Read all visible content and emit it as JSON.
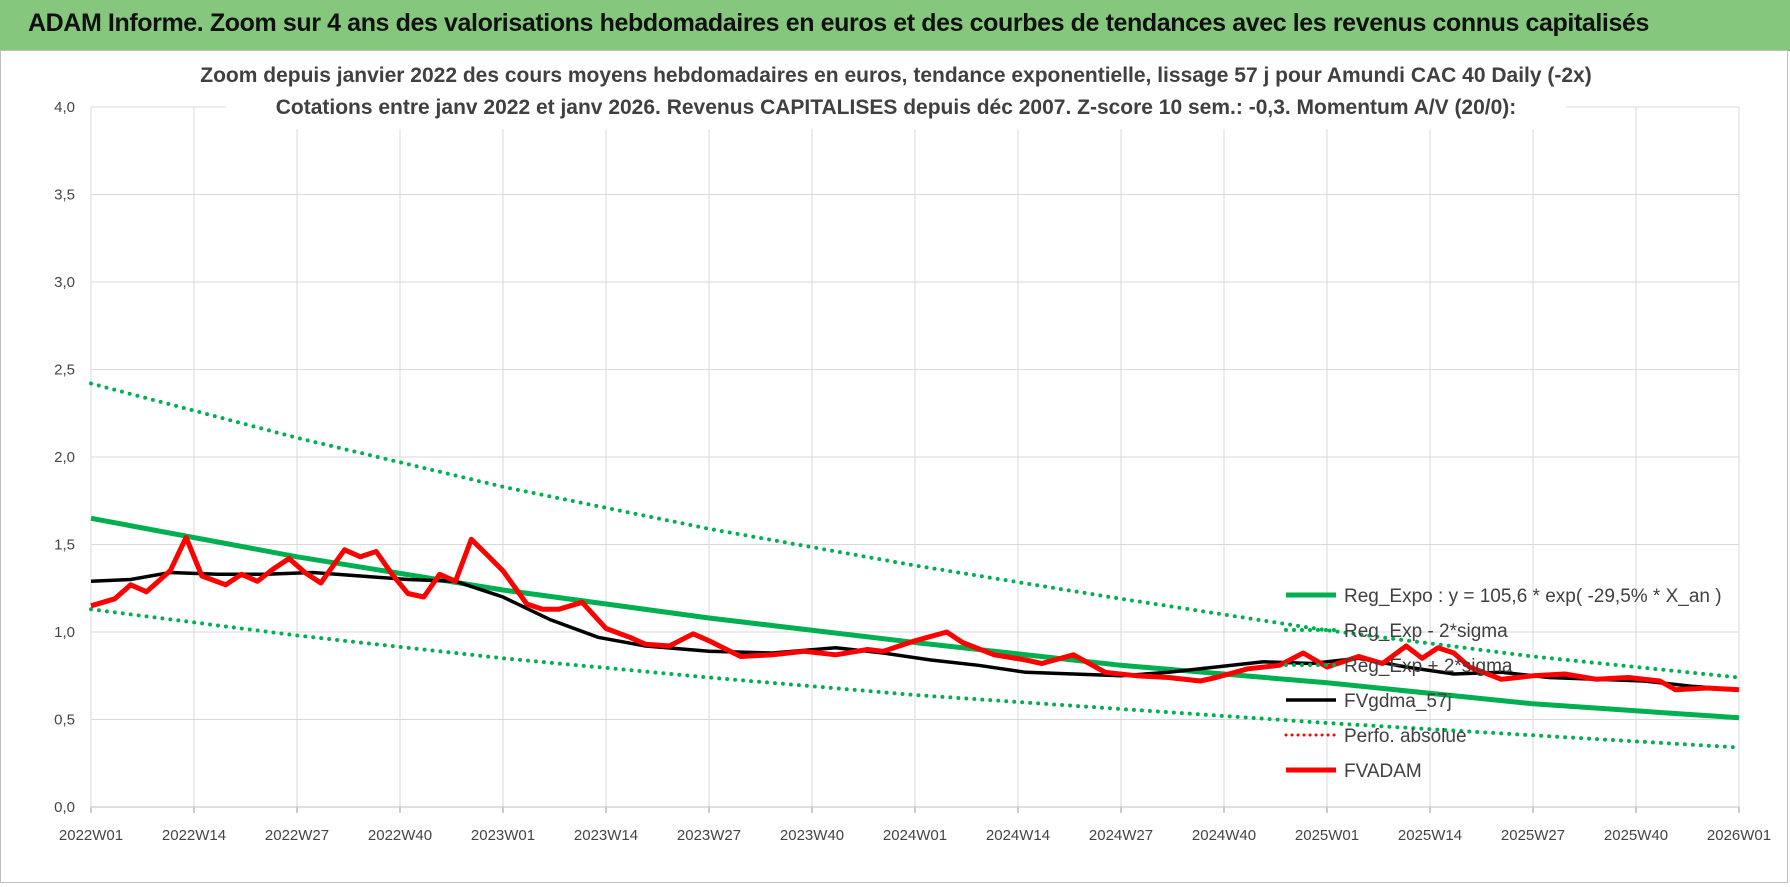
{
  "header": {
    "title": "ADAM Informe. Zoom sur 4 ans des valorisations hebdomadaires en euros et des courbes de tendances avec les revenus connus capitalisés"
  },
  "colors": {
    "header_bg": "#86c77e",
    "trend_green": "#00b050",
    "price_red": "#ff0000",
    "smooth_black": "#000000",
    "grid": "#d9d9d9"
  },
  "chart_data": {
    "type": "line",
    "title_lines": [
      "Zoom depuis janvier 2022 des cours moyens hebdomadaires en euros, tendance exponentielle, lissage 57 j pour Amundi CAC 40 Daily (-2x)",
      "Cotations entre janv 2022 et janv 2026. Revenus CAPITALISES depuis déc 2007. Z-score 10 sem.: -0,3. Momentum A/V (20/0):"
    ],
    "xlabel": "",
    "ylabel": "",
    "x_categories": [
      "2022W01",
      "2022W14",
      "2022W27",
      "2022W40",
      "2023W01",
      "2023W14",
      "2023W27",
      "2023W40",
      "2024W01",
      "2024W14",
      "2024W27",
      "2024W40",
      "2025W01",
      "2025W14",
      "2025W27",
      "2025W40",
      "2026W01"
    ],
    "x_range": [
      0,
      208
    ],
    "ylim": [
      0,
      4.0
    ],
    "y_ticks": [
      "0,0",
      "0,5",
      "1,0",
      "1,5",
      "2,0",
      "2,5",
      "3,0",
      "3,5",
      "4,0"
    ],
    "grid": true,
    "legend_position": "bottom-right",
    "legend": [
      "Reg_Expo : y = 105,6 * exp( -29,5% *  X_an )",
      "Reg_Exp - 2*sigma",
      "Reg_Exp + 2*sigma",
      "FVgdma_57j",
      "Perfo. absolue",
      "FVADAM"
    ],
    "series": [
      {
        "name": "Reg_Expo",
        "style": "solid-green",
        "x": [
          0,
          26,
          52,
          78,
          104,
          130,
          156,
          182,
          208
        ],
        "values": [
          1.65,
          1.43,
          1.24,
          1.08,
          0.94,
          0.81,
          0.71,
          0.59,
          0.51
        ]
      },
      {
        "name": "Reg_Exp + 2*sigma",
        "style": "dotted-green",
        "x": [
          0,
          26,
          52,
          78,
          104,
          130,
          156,
          182,
          208
        ],
        "values": [
          2.42,
          2.11,
          1.83,
          1.59,
          1.38,
          1.19,
          1.01,
          0.86,
          0.74
        ]
      },
      {
        "name": "Reg_Exp - 2*sigma",
        "style": "dotted-green",
        "x": [
          0,
          26,
          52,
          78,
          104,
          130,
          156,
          182,
          208
        ],
        "values": [
          1.13,
          0.98,
          0.85,
          0.74,
          0.64,
          0.56,
          0.48,
          0.41,
          0.34
        ]
      },
      {
        "name": "FVgdma_57j",
        "style": "solid-black",
        "x": [
          0,
          5,
          10,
          16,
          22,
          28,
          34,
          40,
          46,
          52,
          58,
          64,
          70,
          78,
          86,
          94,
          100,
          106,
          112,
          118,
          124,
          130,
          136,
          142,
          148,
          154,
          160,
          166,
          172,
          178,
          184,
          190,
          196,
          202,
          208
        ],
        "values": [
          1.29,
          1.3,
          1.34,
          1.33,
          1.33,
          1.34,
          1.32,
          1.3,
          1.29,
          1.2,
          1.07,
          0.97,
          0.92,
          0.89,
          0.88,
          0.91,
          0.88,
          0.84,
          0.81,
          0.77,
          0.76,
          0.75,
          0.77,
          0.8,
          0.83,
          0.82,
          0.85,
          0.8,
          0.76,
          0.77,
          0.74,
          0.73,
          0.72,
          0.69,
          0.67
        ]
      },
      {
        "name": "FVADAM",
        "style": "solid-red",
        "x": [
          0,
          3,
          5,
          7,
          10,
          12,
          14,
          17,
          19,
          21,
          23,
          25,
          27,
          29,
          32,
          34,
          36,
          38,
          40,
          42,
          44,
          46,
          48,
          50,
          52,
          55,
          57,
          59,
          62,
          65,
          68,
          70,
          73,
          76,
          78,
          82,
          86,
          90,
          94,
          98,
          100,
          104,
          108,
          110,
          114,
          118,
          120,
          124,
          128,
          132,
          136,
          140,
          142,
          146,
          150,
          153,
          156,
          160,
          163,
          166,
          168,
          170,
          172,
          174,
          178,
          182,
          186,
          190,
          194,
          198,
          200,
          204,
          208
        ],
        "values": [
          1.15,
          1.19,
          1.27,
          1.23,
          1.35,
          1.54,
          1.32,
          1.27,
          1.33,
          1.29,
          1.36,
          1.42,
          1.34,
          1.28,
          1.47,
          1.43,
          1.46,
          1.33,
          1.22,
          1.2,
          1.33,
          1.29,
          1.53,
          1.44,
          1.35,
          1.16,
          1.13,
          1.13,
          1.17,
          1.02,
          0.97,
          0.93,
          0.92,
          0.99,
          0.95,
          0.86,
          0.87,
          0.89,
          0.87,
          0.9,
          0.89,
          0.95,
          1.0,
          0.94,
          0.87,
          0.84,
          0.82,
          0.87,
          0.77,
          0.75,
          0.74,
          0.72,
          0.74,
          0.79,
          0.81,
          0.88,
          0.8,
          0.86,
          0.82,
          0.92,
          0.85,
          0.91,
          0.88,
          0.8,
          0.73,
          0.75,
          0.76,
          0.73,
          0.74,
          0.72,
          0.67,
          0.68,
          0.67
        ]
      }
    ]
  }
}
